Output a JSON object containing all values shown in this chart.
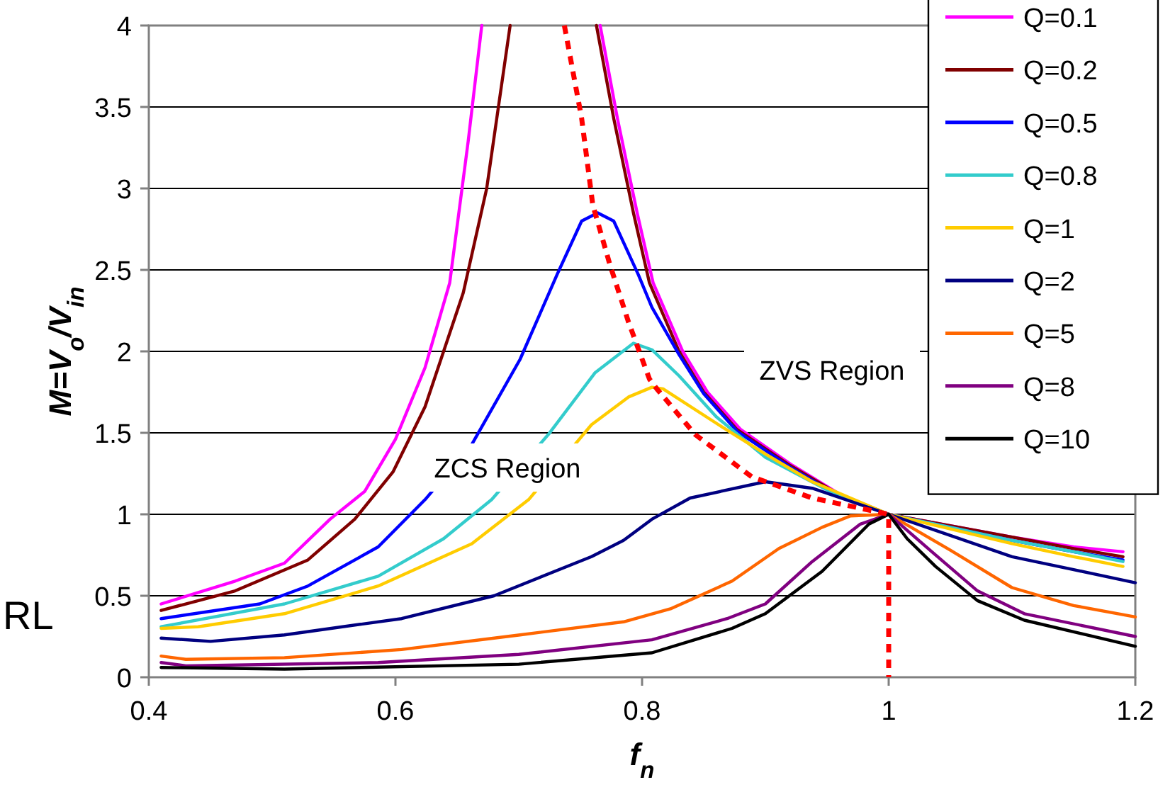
{
  "chart_data": {
    "type": "line",
    "xlabel": "f$_{n}$",
    "ylabel": "M=V$_{o}$/V$_{in}$",
    "xlim": [
      0.4,
      1.2
    ],
    "ylim": [
      0,
      4
    ],
    "xticks": [
      0.4,
      0.6,
      0.8,
      1,
      1.2
    ],
    "yticks": [
      0,
      0.5,
      1,
      1.5,
      2,
      2.5,
      3,
      3.5,
      4
    ],
    "grid": "y",
    "legend": "top right",
    "marker": "none",
    "annotations": [
      "ZCS Region",
      "ZVS Region",
      "RL"
    ],
    "series": [
      {
        "name": "Q=0.1",
        "color": "#ff00ff",
        "x": [
          0.41,
          0.47,
          0.51,
          0.547,
          0.575,
          0.6,
          0.624,
          0.644,
          0.659,
          0.67,
          null,
          0.766,
          0.78,
          0.796,
          0.809,
          0.833,
          0.853,
          0.88,
          0.922,
          0.961,
          1,
          1.05,
          1.1,
          1.15,
          1.19
        ],
        "values": [
          0.45,
          0.59,
          0.7,
          0.97,
          1.14,
          1.46,
          1.9,
          2.42,
          3.29,
          4,
          null,
          4,
          3.43,
          2.85,
          2.42,
          2,
          1.75,
          1.52,
          1.3,
          1.12,
          1,
          0.93,
          0.86,
          0.8,
          0.77
        ]
      },
      {
        "name": "Q=0.2",
        "color": "#800000",
        "x": [
          0.41,
          0.47,
          0.529,
          0.567,
          0.598,
          0.624,
          0.655,
          0.674,
          0.693,
          null,
          0.763,
          0.777,
          0.793,
          0.806,
          0.83,
          0.85,
          0.877,
          0.92,
          0.96,
          1,
          1.05,
          1.1,
          1.15,
          1.19
        ],
        "values": [
          0.41,
          0.53,
          0.72,
          0.97,
          1.26,
          1.66,
          2.36,
          3,
          4,
          null,
          4,
          3.43,
          2.85,
          2.42,
          2,
          1.75,
          1.52,
          1.3,
          1.12,
          1,
          0.93,
          0.86,
          0.79,
          0.74
        ]
      },
      {
        "name": "Q=0.5",
        "color": "#0000ff",
        "x": [
          0.41,
          0.49,
          0.529,
          0.586,
          0.624,
          0.662,
          0.701,
          0.731,
          0.751,
          0.764,
          0.777,
          0.797,
          0.808,
          0.83,
          0.85,
          0.877,
          0.92,
          0.96,
          1,
          1.05,
          1.1,
          1.15,
          1.19
        ],
        "values": [
          0.36,
          0.45,
          0.56,
          0.8,
          1.09,
          1.43,
          1.95,
          2.47,
          2.8,
          2.85,
          2.8,
          2.47,
          2.27,
          1.98,
          1.74,
          1.51,
          1.29,
          1.11,
          1,
          0.92,
          0.84,
          0.77,
          0.72
        ]
      },
      {
        "name": "Q=0.8",
        "color": "#33cccc",
        "x": [
          0.41,
          0.51,
          0.586,
          0.639,
          0.678,
          0.724,
          0.762,
          0.793,
          0.808,
          0.83,
          0.86,
          0.9,
          0.95,
          1,
          1.05,
          1.1,
          1.15,
          1.19
        ],
        "values": [
          0.31,
          0.45,
          0.62,
          0.85,
          1.09,
          1.49,
          1.87,
          2.05,
          2.01,
          1.85,
          1.6,
          1.35,
          1.15,
          1,
          0.92,
          0.84,
          0.77,
          0.71
        ]
      },
      {
        "name": "Q=1",
        "color": "#ffcc00",
        "x": [
          0.41,
          0.44,
          0.51,
          0.586,
          0.662,
          0.708,
          0.759,
          0.789,
          0.808,
          0.817,
          0.862,
          0.9,
          0.938,
          1,
          1.05,
          1.1,
          1.15,
          1.19
        ],
        "values": [
          0.3,
          0.31,
          0.39,
          0.56,
          0.82,
          1.09,
          1.55,
          1.72,
          1.78,
          1.77,
          1.55,
          1.37,
          1.2,
          1,
          0.91,
          0.82,
          0.74,
          0.68
        ]
      },
      {
        "name": "Q=2",
        "color": "#000080",
        "x": [
          0.41,
          0.45,
          0.51,
          0.605,
          0.68,
          0.759,
          0.785,
          0.808,
          0.839,
          0.9,
          0.938,
          1,
          1.05,
          1.1,
          1.15,
          1.2
        ],
        "values": [
          0.24,
          0.22,
          0.26,
          0.36,
          0.5,
          0.74,
          0.84,
          0.97,
          1.1,
          1.2,
          1.16,
          1,
          0.87,
          0.74,
          0.66,
          0.58
        ]
      },
      {
        "name": "Q=5",
        "color": "#ff6600",
        "x": [
          0.41,
          0.43,
          0.51,
          0.605,
          0.701,
          0.785,
          0.823,
          0.873,
          0.911,
          0.946,
          0.969,
          1,
          1.05,
          1.1,
          1.15,
          1.2
        ],
        "values": [
          0.13,
          0.11,
          0.12,
          0.17,
          0.26,
          0.34,
          0.42,
          0.59,
          0.79,
          0.92,
          0.99,
          1,
          0.78,
          0.55,
          0.44,
          0.37
        ]
      },
      {
        "name": "Q=8",
        "color": "#800080",
        "x": [
          0.41,
          0.43,
          0.586,
          0.7,
          0.808,
          0.869,
          0.9,
          0.938,
          0.977,
          1,
          1.035,
          1.072,
          1.11,
          1.2
        ],
        "values": [
          0.09,
          0.07,
          0.09,
          0.14,
          0.23,
          0.36,
          0.45,
          0.71,
          0.94,
          1,
          0.77,
          0.53,
          0.39,
          0.25
        ]
      },
      {
        "name": "Q=10",
        "color": "#000000",
        "x": [
          0.41,
          0.51,
          0.7,
          0.808,
          0.873,
          0.9,
          0.946,
          0.984,
          1,
          1.015,
          1.038,
          1.072,
          1.11,
          1.2
        ],
        "values": [
          0.06,
          0.05,
          0.08,
          0.15,
          0.3,
          0.39,
          0.65,
          0.94,
          1,
          0.85,
          0.68,
          0.47,
          0.35,
          0.19
        ]
      },
      {
        "color": "#ff0000",
        "line_style": "dashed",
        "x": [
          0.737,
          0.751,
          0.76,
          0.774,
          0.789,
          0.806,
          0.812,
          0.843,
          0.889,
          0.938,
          1,
          1
        ],
        "values": [
          4,
          3.43,
          2.9,
          2.53,
          2.18,
          1.83,
          1.77,
          1.49,
          1.23,
          1.1,
          1,
          0
        ]
      }
    ]
  }
}
